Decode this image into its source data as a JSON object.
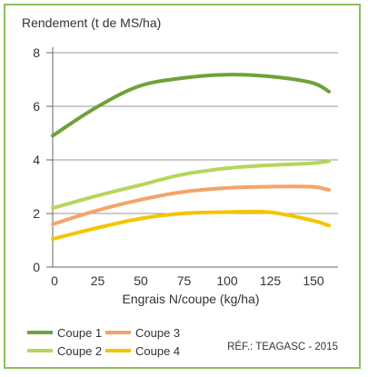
{
  "chart_data": {
    "type": "line",
    "title": "Rendement (t de MS/ha)",
    "xlabel": "Engrais N/coupe (kg/ha)",
    "ylabel": "Rendement (t de MS/ha)",
    "xlim": [
      0,
      160
    ],
    "ylim": [
      0,
      8
    ],
    "x_ticks": [
      "0",
      "25",
      "50",
      "75",
      "100",
      "125",
      "150"
    ],
    "y_ticks": [
      "0",
      "2",
      "4",
      "6",
      "8"
    ],
    "grid": "horizontal",
    "series": [
      {
        "name": "Coupe 1",
        "color": "#6fa13a",
        "x": [
          0,
          25,
          50,
          75,
          100,
          125,
          150,
          160
        ],
        "y": [
          4.9,
          5.95,
          6.75,
          7.05,
          7.18,
          7.12,
          6.88,
          6.55
        ]
      },
      {
        "name": "Coupe 2",
        "color": "#b6d65a",
        "x": [
          0,
          25,
          50,
          75,
          100,
          125,
          150,
          160
        ],
        "y": [
          2.2,
          2.65,
          3.05,
          3.45,
          3.68,
          3.8,
          3.87,
          3.95
        ]
      },
      {
        "name": "Coupe 3",
        "color": "#f4a46a",
        "x": [
          0,
          25,
          50,
          75,
          100,
          125,
          150,
          160
        ],
        "y": [
          1.6,
          2.1,
          2.5,
          2.8,
          2.95,
          3.0,
          3.0,
          2.88
        ]
      },
      {
        "name": "Coupe 4",
        "color": "#f5c400",
        "x": [
          0,
          25,
          50,
          75,
          100,
          125,
          150,
          160
        ],
        "y": [
          1.05,
          1.45,
          1.8,
          2.0,
          2.05,
          2.05,
          1.75,
          1.55
        ]
      }
    ],
    "legend_position": "bottom",
    "source": "RÉF.:  TEAGASC - 2015"
  }
}
